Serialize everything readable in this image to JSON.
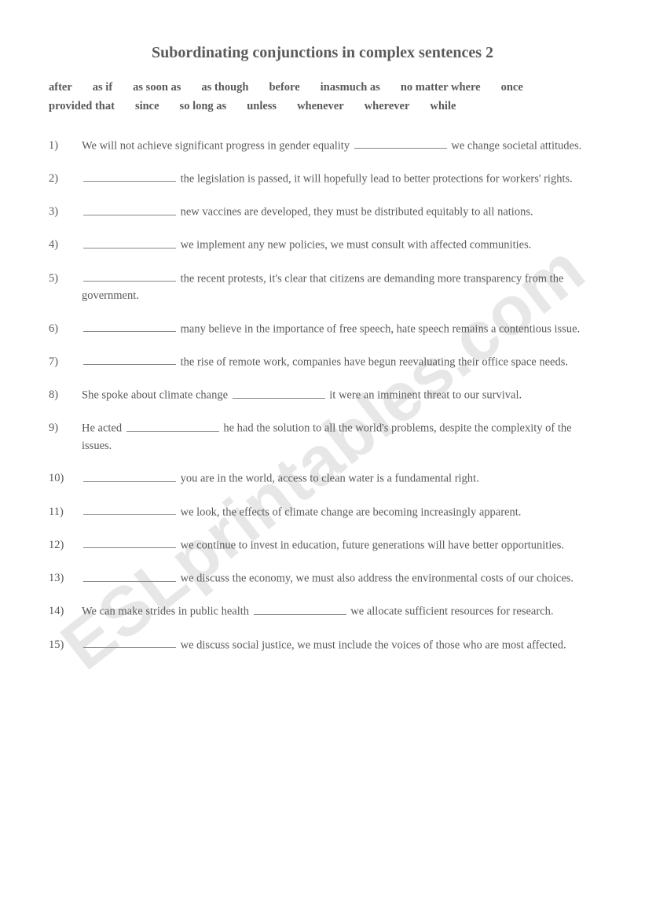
{
  "title": "Subordinating conjunctions in complex sentences 2",
  "watermark": "ESLprintables.com",
  "wordbank": [
    "after",
    "as if",
    "as soon as",
    "as though",
    "before",
    "inasmuch as",
    "no matter where",
    "once",
    "provided that",
    "since",
    "so long as",
    "unless",
    "whenever",
    "wherever",
    "while"
  ],
  "blank_token": "__BLANK__",
  "questions": [
    "We will not achieve significant progress in gender equality __BLANK__ we change societal attitudes.",
    "__BLANK__ the legislation is passed, it will hopefully lead to better protections for workers' rights.",
    "__BLANK__ new vaccines are developed, they must be distributed equitably to all nations.",
    "__BLANK__ we implement any new policies, we must consult with affected communities.",
    "__BLANK__ the recent protests, it's clear that citizens are demanding more transparency from the government.",
    "__BLANK__ many believe in the importance of free speech, hate speech remains a contentious issue.",
    "__BLANK__ the rise of remote work, companies have begun reevaluating their office space needs.",
    "She spoke about climate change __BLANK__ it were an imminent threat to our survival.",
    "He acted __BLANK__ he had the solution to all the world's problems, despite the complexity of the issues.",
    "__BLANK__ you are in the world, access to clean water is a fundamental right.",
    "__BLANK__ we look, the effects of climate change are becoming increasingly apparent.",
    "__BLANK__ we continue to invest in education, future generations will have better opportunities.",
    "__BLANK__ we discuss the economy, we must also address the environmental costs of our choices.",
    "We can make strides in public health __BLANK__ we allocate sufficient resources for research.",
    "__BLANK__ we discuss social justice, we must include the voices of those who are most affected."
  ]
}
